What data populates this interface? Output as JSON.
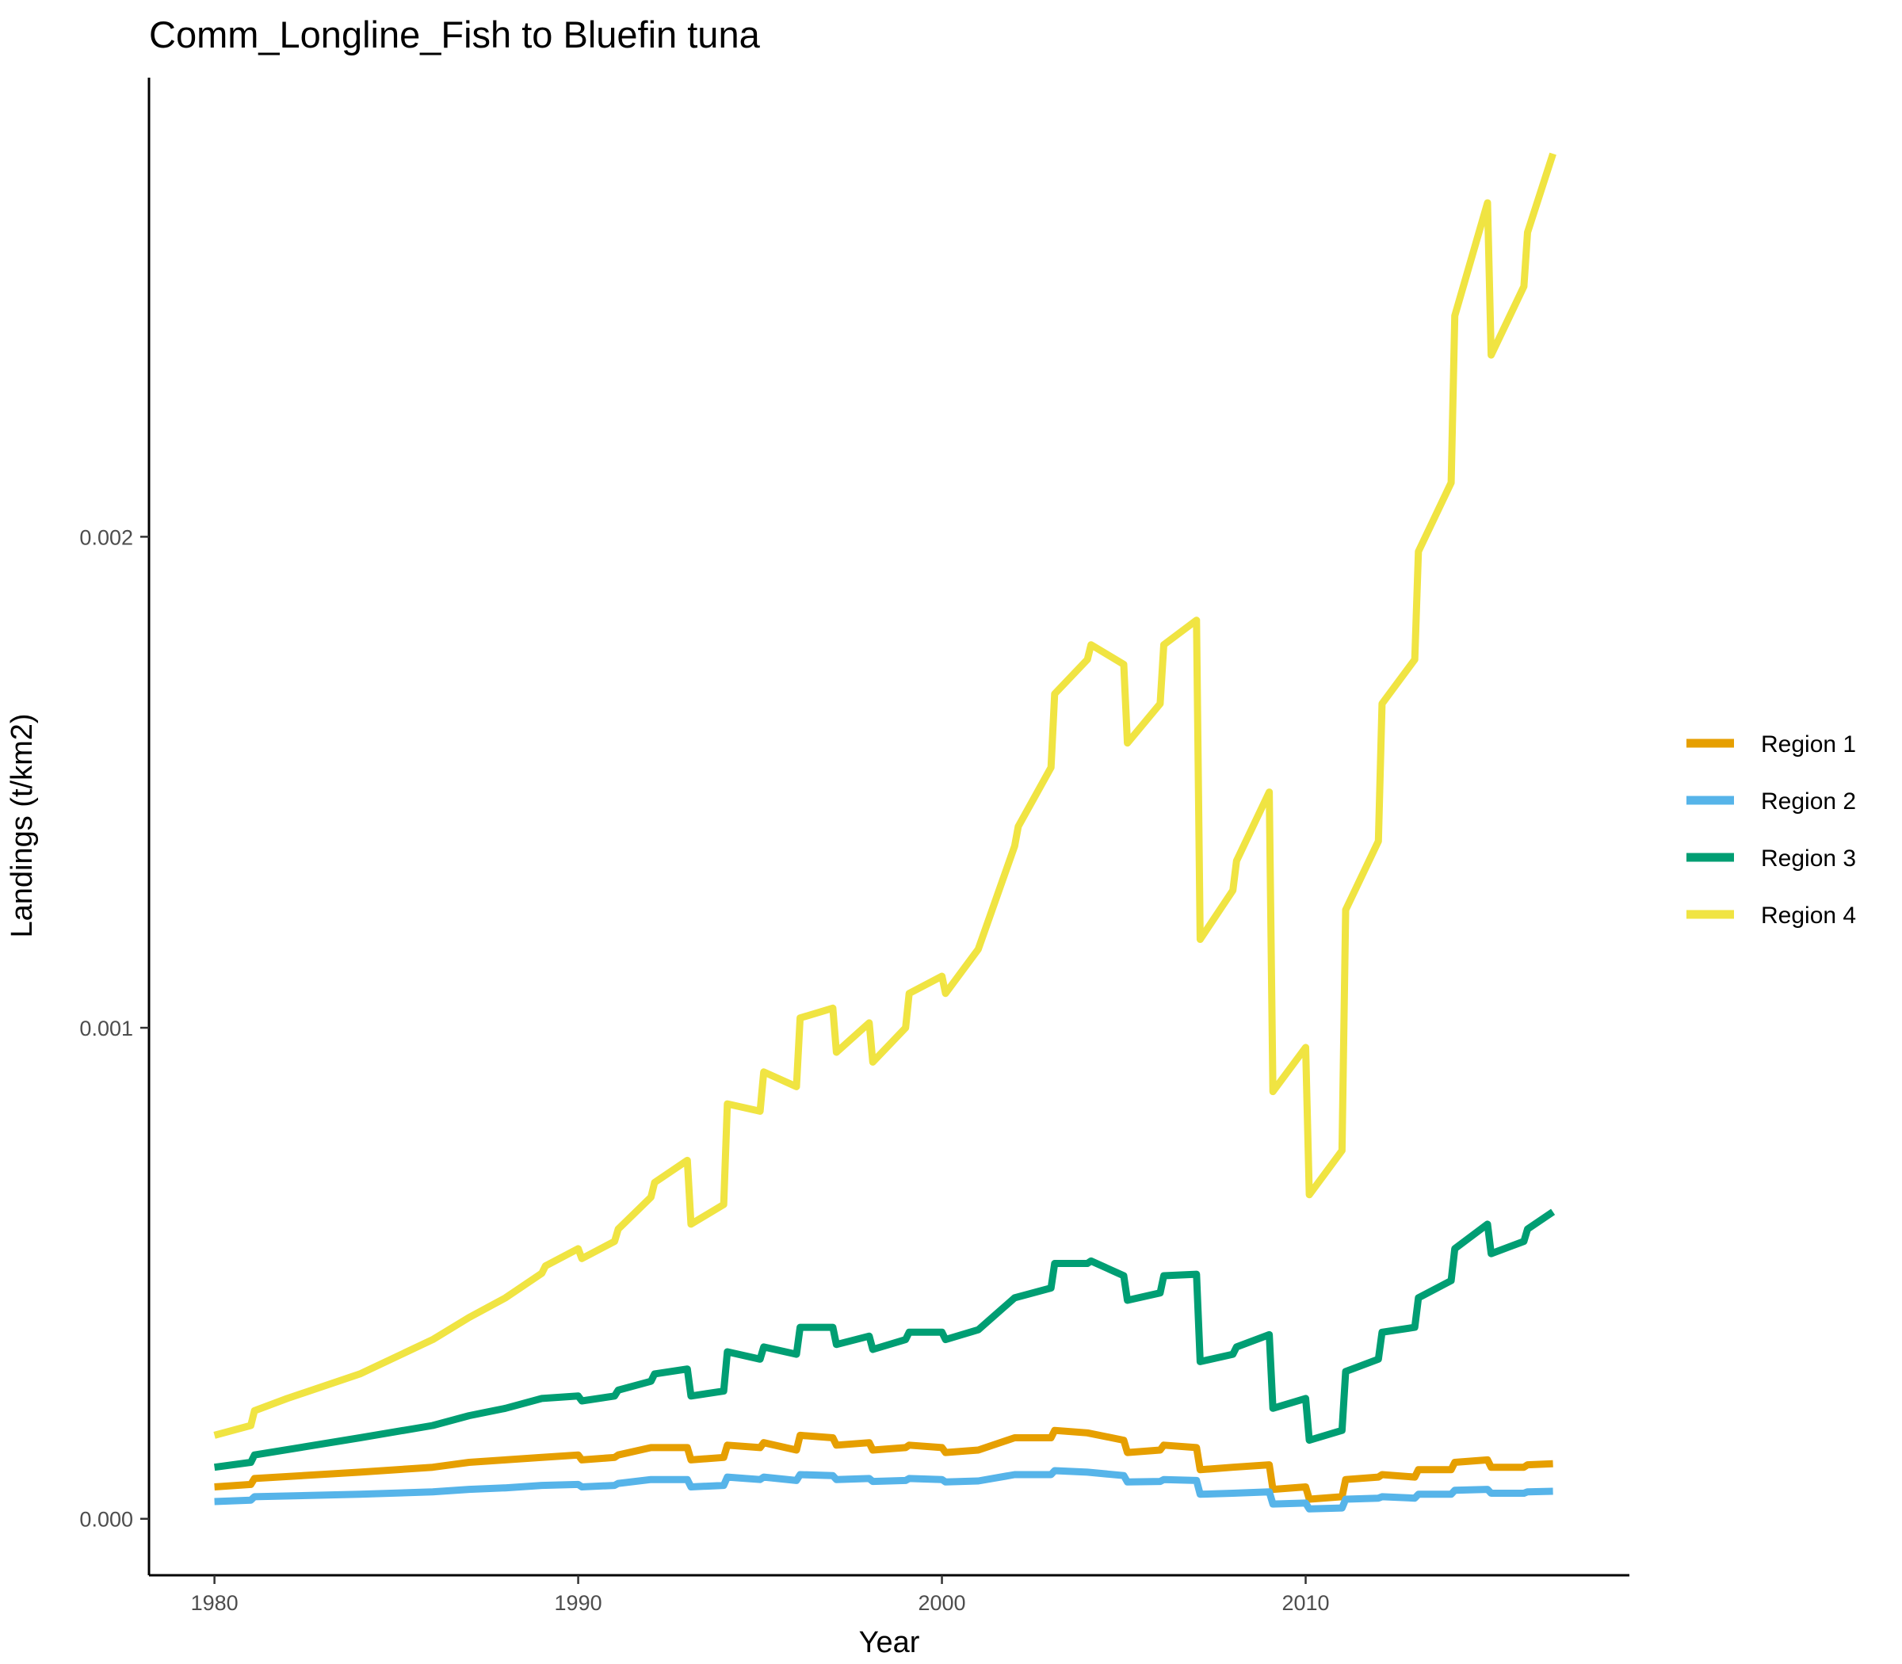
{
  "chart_data": {
    "type": "line",
    "title": "Comm_Longline_Fish to Bluefin tuna",
    "xlabel": "Year",
    "ylabel": "Landings (t/km2)",
    "xlim": [
      1978.2,
      2018.9
    ],
    "ylim": [
      -0.000115,
      0.002935
    ],
    "x_ticks": [
      1980,
      1990,
      2000,
      2010
    ],
    "x_tick_labels": [
      "1980",
      "1990",
      "2000",
      "2010"
    ],
    "y_ticks": [
      0,
      0.001,
      0.002
    ],
    "y_tick_labels": [
      "0.000",
      "0.001",
      "0.002"
    ],
    "grid": false,
    "legend_position": "right",
    "series": [
      {
        "name": "Region 1",
        "color": "#E69F00",
        "points": [
          [
            1980,
            6.5e-05
          ],
          [
            1981,
            7e-05
          ],
          [
            1981.1,
            8.2e-05
          ],
          [
            1984,
            9.5e-05
          ],
          [
            1986,
            0.000105
          ],
          [
            1987,
            0.000115
          ],
          [
            1988,
            0.00012
          ],
          [
            1989,
            0.000125
          ],
          [
            1990,
            0.00013
          ],
          [
            1990.1,
            0.00012
          ],
          [
            1991,
            0.000125
          ],
          [
            1991.1,
            0.00013
          ],
          [
            1992,
            0.000145
          ],
          [
            1993,
            0.000145
          ],
          [
            1993.1,
            0.00012
          ],
          [
            1994,
            0.000125
          ],
          [
            1994.1,
            0.00015
          ],
          [
            1995,
            0.000145
          ],
          [
            1995.1,
            0.000155
          ],
          [
            1996,
            0.00014
          ],
          [
            1996.1,
            0.00017
          ],
          [
            1997,
            0.000165
          ],
          [
            1997.1,
            0.00015
          ],
          [
            1998,
            0.000155
          ],
          [
            1998.1,
            0.00014
          ],
          [
            1999,
            0.000145
          ],
          [
            1999.1,
            0.00015
          ],
          [
            2000,
            0.000145
          ],
          [
            2000.1,
            0.000135
          ],
          [
            2001,
            0.00014
          ],
          [
            2002,
            0.000165
          ],
          [
            2003,
            0.000165
          ],
          [
            2003.1,
            0.00018
          ],
          [
            2004,
            0.000175
          ],
          [
            2005,
            0.00016
          ],
          [
            2005.1,
            0.000135
          ],
          [
            2006,
            0.00014
          ],
          [
            2006.1,
            0.00015
          ],
          [
            2007,
            0.000145
          ],
          [
            2007.1,
            0.0001
          ],
          [
            2008,
            0.000105
          ],
          [
            2009,
            0.00011
          ],
          [
            2009.1,
            6e-05
          ],
          [
            2010,
            6.5e-05
          ],
          [
            2010.1,
            4e-05
          ],
          [
            2011,
            4.5e-05
          ],
          [
            2011.1,
            8e-05
          ],
          [
            2012,
            8.5e-05
          ],
          [
            2012.1,
            9e-05
          ],
          [
            2013,
            8.5e-05
          ],
          [
            2013.1,
            0.0001
          ],
          [
            2014,
            0.0001
          ],
          [
            2014.1,
            0.000115
          ],
          [
            2015,
            0.00012
          ],
          [
            2015.1,
            0.000105
          ],
          [
            2016,
            0.000105
          ],
          [
            2016.1,
            0.00011
          ],
          [
            2016.8,
            0.000112
          ]
        ]
      },
      {
        "name": "Region 2",
        "color": "#56B4E9",
        "points": [
          [
            1980,
            3.5e-05
          ],
          [
            1981,
            3.8e-05
          ],
          [
            1981.1,
            4.5e-05
          ],
          [
            1984,
            5e-05
          ],
          [
            1986,
            5.5e-05
          ],
          [
            1987,
            6e-05
          ],
          [
            1988,
            6.3e-05
          ],
          [
            1989,
            6.8e-05
          ],
          [
            1990,
            7e-05
          ],
          [
            1990.1,
            6.5e-05
          ],
          [
            1991,
            6.8e-05
          ],
          [
            1991.1,
            7.2e-05
          ],
          [
            1992,
            8e-05
          ],
          [
            1993,
            8e-05
          ],
          [
            1993.1,
            6.5e-05
          ],
          [
            1994,
            6.8e-05
          ],
          [
            1994.1,
            8.5e-05
          ],
          [
            1995,
            8e-05
          ],
          [
            1995.1,
            8.5e-05
          ],
          [
            1996,
            7.8e-05
          ],
          [
            1996.1,
            9e-05
          ],
          [
            1997,
            8.8e-05
          ],
          [
            1997.1,
            8e-05
          ],
          [
            1998,
            8.2e-05
          ],
          [
            1998.1,
            7.6e-05
          ],
          [
            1999,
            7.8e-05
          ],
          [
            1999.1,
            8.2e-05
          ],
          [
            2000,
            8e-05
          ],
          [
            2000.1,
            7.5e-05
          ],
          [
            2001,
            7.7e-05
          ],
          [
            2002,
            9e-05
          ],
          [
            2003,
            9e-05
          ],
          [
            2003.1,
            9.8e-05
          ],
          [
            2004,
            9.5e-05
          ],
          [
            2005,
            8.8e-05
          ],
          [
            2005.1,
            7.5e-05
          ],
          [
            2006,
            7.6e-05
          ],
          [
            2006.1,
            8e-05
          ],
          [
            2007,
            7.8e-05
          ],
          [
            2007.1,
            5e-05
          ],
          [
            2008,
            5.2e-05
          ],
          [
            2009,
            5.5e-05
          ],
          [
            2009.1,
            3e-05
          ],
          [
            2010,
            3.2e-05
          ],
          [
            2010.1,
            2e-05
          ],
          [
            2011,
            2.2e-05
          ],
          [
            2011.1,
            4e-05
          ],
          [
            2012,
            4.2e-05
          ],
          [
            2012.1,
            4.5e-05
          ],
          [
            2013,
            4.2e-05
          ],
          [
            2013.1,
            5e-05
          ],
          [
            2014,
            5e-05
          ],
          [
            2014.1,
            5.8e-05
          ],
          [
            2015,
            6e-05
          ],
          [
            2015.1,
            5.2e-05
          ],
          [
            2016,
            5.2e-05
          ],
          [
            2016.1,
            5.5e-05
          ],
          [
            2016.8,
            5.6e-05
          ]
        ]
      },
      {
        "name": "Region 3",
        "color": "#009E73",
        "points": [
          [
            1980,
            0.000105
          ],
          [
            1981,
            0.000115
          ],
          [
            1981.1,
            0.00013
          ],
          [
            1984,
            0.000165
          ],
          [
            1986,
            0.00019
          ],
          [
            1987,
            0.00021
          ],
          [
            1988,
            0.000225
          ],
          [
            1989,
            0.000245
          ],
          [
            1990,
            0.00025
          ],
          [
            1990.1,
            0.00024
          ],
          [
            1991,
            0.00025
          ],
          [
            1991.1,
            0.000262
          ],
          [
            1992,
            0.00028
          ],
          [
            1992.1,
            0.000295
          ],
          [
            1993,
            0.000305
          ],
          [
            1993.1,
            0.00025
          ],
          [
            1994,
            0.00026
          ],
          [
            1994.1,
            0.00034
          ],
          [
            1995,
            0.000325
          ],
          [
            1995.1,
            0.00035
          ],
          [
            1996,
            0.000335
          ],
          [
            1996.1,
            0.00039
          ],
          [
            1997,
            0.00039
          ],
          [
            1997.1,
            0.000355
          ],
          [
            1998,
            0.000372
          ],
          [
            1998.1,
            0.000345
          ],
          [
            1999,
            0.000365
          ],
          [
            1999.1,
            0.00038
          ],
          [
            2000,
            0.00038
          ],
          [
            2000.1,
            0.000365
          ],
          [
            2001,
            0.000385
          ],
          [
            2002,
            0.00045
          ],
          [
            2003,
            0.00047
          ],
          [
            2003.1,
            0.00052
          ],
          [
            2004,
            0.00052
          ],
          [
            2004.1,
            0.000525
          ],
          [
            2005,
            0.000495
          ],
          [
            2005.1,
            0.000445
          ],
          [
            2006,
            0.00046
          ],
          [
            2006.1,
            0.000495
          ],
          [
            2007,
            0.000498
          ],
          [
            2007.1,
            0.00032
          ],
          [
            2008,
            0.000335
          ],
          [
            2008.1,
            0.00035
          ],
          [
            2009,
            0.000375
          ],
          [
            2009.1,
            0.000225
          ],
          [
            2010,
            0.000245
          ],
          [
            2010.1,
            0.00016
          ],
          [
            2011,
            0.00018
          ],
          [
            2011.1,
            0.0003
          ],
          [
            2012,
            0.000325
          ],
          [
            2012.1,
            0.00038
          ],
          [
            2013,
            0.00039
          ],
          [
            2013.1,
            0.00045
          ],
          [
            2014,
            0.000485
          ],
          [
            2014.1,
            0.00055
          ],
          [
            2015,
            0.0006
          ],
          [
            2015.1,
            0.00054
          ],
          [
            2016,
            0.000565
          ],
          [
            2016.1,
            0.00059
          ],
          [
            2016.8,
            0.000625
          ]
        ]
      },
      {
        "name": "Region 4",
        "color": "#F0E442",
        "points": [
          [
            1980,
            0.00017
          ],
          [
            1981,
            0.00019
          ],
          [
            1981.1,
            0.00022
          ],
          [
            1982,
            0.000245
          ],
          [
            1984,
            0.000295
          ],
          [
            1986,
            0.000365
          ],
          [
            1987,
            0.00041
          ],
          [
            1988,
            0.00045
          ],
          [
            1989,
            0.0005
          ],
          [
            1989.1,
            0.000515
          ],
          [
            1990,
            0.00055
          ],
          [
            1990.1,
            0.00053
          ],
          [
            1991,
            0.000565
          ],
          [
            1991.1,
            0.00059
          ],
          [
            1992,
            0.000655
          ],
          [
            1992.1,
            0.000685
          ],
          [
            1993,
            0.00073
          ],
          [
            1993.1,
            0.0006
          ],
          [
            1994,
            0.00064
          ],
          [
            1994.1,
            0.000845
          ],
          [
            1995,
            0.00083
          ],
          [
            1995.1,
            0.00091
          ],
          [
            1996,
            0.00088
          ],
          [
            1996.1,
            0.00102
          ],
          [
            1997,
            0.00104
          ],
          [
            1997.1,
            0.00095
          ],
          [
            1998,
            0.00101
          ],
          [
            1998.1,
            0.00093
          ],
          [
            1999,
            0.001
          ],
          [
            1999.1,
            0.00107
          ],
          [
            2000,
            0.001105
          ],
          [
            2000.1,
            0.00107
          ],
          [
            2001,
            0.00116
          ],
          [
            2002,
            0.00137
          ],
          [
            2002.1,
            0.00141
          ],
          [
            2003,
            0.00153
          ],
          [
            2003.1,
            0.00168
          ],
          [
            2004,
            0.00175
          ],
          [
            2004.1,
            0.00178
          ],
          [
            2005,
            0.00174
          ],
          [
            2005.1,
            0.00158
          ],
          [
            2006,
            0.00166
          ],
          [
            2006.1,
            0.00178
          ],
          [
            2007,
            0.00183
          ],
          [
            2007.1,
            0.00118
          ],
          [
            2008,
            0.00128
          ],
          [
            2008.1,
            0.00134
          ],
          [
            2009,
            0.00148
          ],
          [
            2009.1,
            0.00087
          ],
          [
            2010,
            0.00096
          ],
          [
            2010.1,
            0.00066
          ],
          [
            2011,
            0.00075
          ],
          [
            2011.1,
            0.00124
          ],
          [
            2012,
            0.00138
          ],
          [
            2012.1,
            0.00166
          ],
          [
            2013,
            0.00175
          ],
          [
            2013.1,
            0.00197
          ],
          [
            2014,
            0.00211
          ],
          [
            2014.1,
            0.00245
          ],
          [
            2015,
            0.00268
          ],
          [
            2015.1,
            0.00237
          ],
          [
            2016,
            0.00251
          ],
          [
            2016.1,
            0.00262
          ],
          [
            2016.8,
            0.00278
          ]
        ]
      }
    ]
  }
}
